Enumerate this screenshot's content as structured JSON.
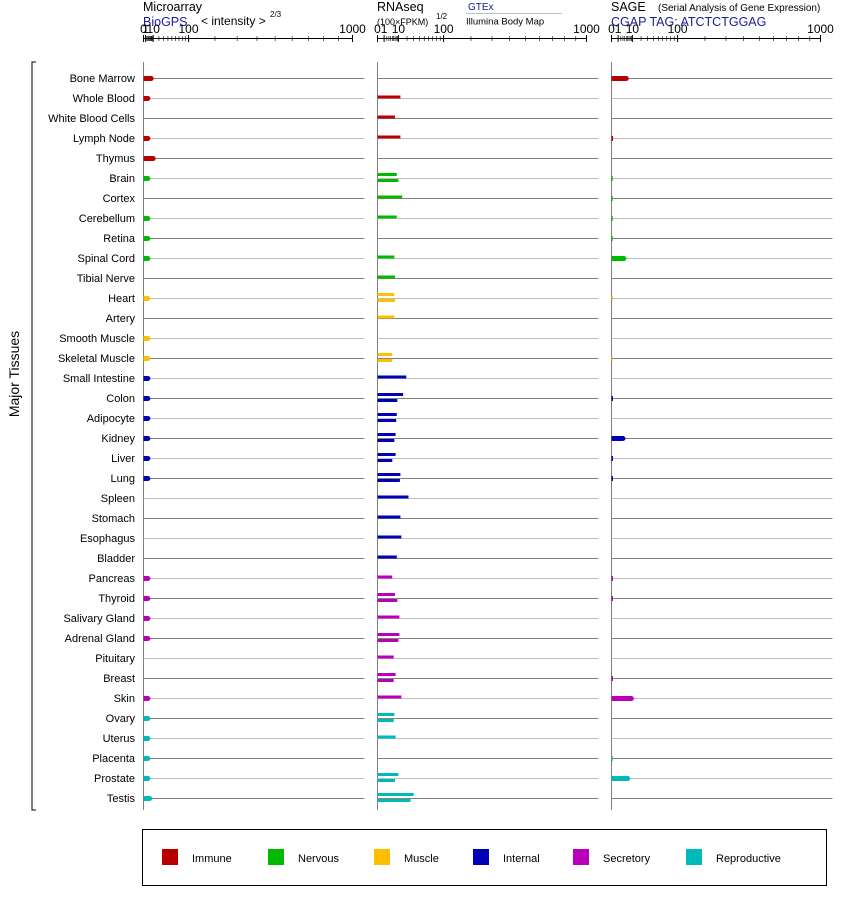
{
  "headers": {
    "microarray": {
      "title": "Microarray",
      "source": "BioGPS",
      "unit": "< intensity >",
      "exponent": "2/3"
    },
    "rnaseq": {
      "title": "RNAseq",
      "unit": "(100×FPKM)",
      "exponent": "1/2",
      "source_a": "GTEx",
      "source_b": "Illumina Body Map"
    },
    "sage": {
      "title": "SAGE",
      "subtitle": "(Serial Analysis of Gene Expression)",
      "tag": "CGAP TAG: ATCTCTGGAG"
    }
  },
  "y_axis_label": "Major Tissues",
  "colors": {
    "Immune": "#b90000",
    "Nervous": "#00b900",
    "Muscle": "#ffbf00",
    "Internal": "#0000b9",
    "Secretory": "#b900b9",
    "Reproductive": "#00b9b9"
  },
  "chart_data": {
    "type": "bar",
    "x_scale": "power",
    "xlim": [
      0,
      1000
    ],
    "x_ticks": [
      "0",
      "1",
      "10",
      "100",
      "1000"
    ],
    "legend": [
      "Immune",
      "Nervous",
      "Muscle",
      "Internal",
      "Secretory",
      "Reproductive"
    ],
    "legend_placement": "bottom",
    "tissues": [
      {
        "name": "Bone Marrow",
        "group": "Immune",
        "microarray": 7,
        "rnaseq": [],
        "sage": 5
      },
      {
        "name": "Whole Blood",
        "group": "Immune",
        "microarray": 3,
        "rnaseq": [
          12
        ],
        "sage": 0
      },
      {
        "name": "White Blood Cells",
        "group": "Immune",
        "microarray": 0,
        "rnaseq": [
          7
        ],
        "sage": 0
      },
      {
        "name": "Lymph Node",
        "group": "Immune",
        "microarray": 3,
        "rnaseq": [
          12
        ],
        "sage": 0.05
      },
      {
        "name": "Thymus",
        "group": "Immune",
        "microarray": 10,
        "rnaseq": [],
        "sage": 0
      },
      {
        "name": "Brain",
        "group": "Nervous",
        "microarray": 3,
        "rnaseq": [
          8.5,
          10
        ],
        "sage": 0.02
      },
      {
        "name": "Cortex",
        "group": "Nervous",
        "microarray": 0,
        "rnaseq": [
          14
        ],
        "sage": 0.02
      },
      {
        "name": "Cerebellum",
        "group": "Nervous",
        "microarray": 3,
        "rnaseq": [
          8.5
        ],
        "sage": 0.02
      },
      {
        "name": "Retina",
        "group": "Nervous",
        "microarray": 3,
        "rnaseq": [],
        "sage": 0.02
      },
      {
        "name": "Spinal Cord",
        "group": "Nervous",
        "microarray": 3,
        "rnaseq": [
          6.5
        ],
        "sage": 3.5
      },
      {
        "name": "Tibial Nerve",
        "group": "Nervous",
        "microarray": 0,
        "rnaseq": [
          7
        ],
        "sage": 0
      },
      {
        "name": "Heart",
        "group": "Muscle",
        "microarray": 2.8,
        "rnaseq": [
          6.5,
          7
        ],
        "sage": 0.01
      },
      {
        "name": "Artery",
        "group": "Muscle",
        "microarray": 0,
        "rnaseq": [
          6.5
        ],
        "sage": 0
      },
      {
        "name": "Smooth Muscle",
        "group": "Muscle",
        "microarray": 3,
        "rnaseq": [],
        "sage": 0
      },
      {
        "name": "Skeletal Muscle",
        "group": "Muscle",
        "microarray": 3,
        "rnaseq": [
          5,
          5
        ],
        "sage": 0.01
      },
      {
        "name": "Small Intestine",
        "group": "Internal",
        "microarray": 3,
        "rnaseq": [
          19
        ],
        "sage": 0
      },
      {
        "name": "Colon",
        "group": "Internal",
        "microarray": 3,
        "rnaseq": [
          15,
          9
        ],
        "sage": 0.05
      },
      {
        "name": "Adipocyte",
        "group": "Internal",
        "microarray": 3,
        "rnaseq": [
          8.5,
          8
        ],
        "sage": 0
      },
      {
        "name": "Kidney",
        "group": "Internal",
        "microarray": 3,
        "rnaseq": [
          7.5,
          6.5
        ],
        "sage": 3
      },
      {
        "name": "Liver",
        "group": "Internal",
        "microarray": 3,
        "rnaseq": [
          7.5,
          5
        ],
        "sage": 0.05
      },
      {
        "name": "Lung",
        "group": "Internal",
        "microarray": 3,
        "rnaseq": [
          12,
          11.5
        ],
        "sage": 0.05
      },
      {
        "name": "Spleen",
        "group": "Internal",
        "microarray": 0,
        "rnaseq": [
          22
        ],
        "sage": 0
      },
      {
        "name": "Stomach",
        "group": "Internal",
        "microarray": 0,
        "rnaseq": [
          12
        ],
        "sage": 0
      },
      {
        "name": "Esophagus",
        "group": "Internal",
        "microarray": 0,
        "rnaseq": [
          13
        ],
        "sage": 0
      },
      {
        "name": "Bladder",
        "group": "Internal",
        "microarray": 0,
        "rnaseq": [
          8.5
        ],
        "sage": 0
      },
      {
        "name": "Pancreas",
        "group": "Secretory",
        "microarray": 3,
        "rnaseq": [
          5
        ],
        "sage": 0.05
      },
      {
        "name": "Thyroid",
        "group": "Secretory",
        "microarray": 3,
        "rnaseq": [
          7,
          9
        ],
        "sage": 0.05
      },
      {
        "name": "Salivary Gland",
        "group": "Secretory",
        "microarray": 3,
        "rnaseq": [
          11
        ],
        "sage": 0
      },
      {
        "name": "Adrenal Gland",
        "group": "Secretory",
        "microarray": 3,
        "rnaseq": [
          11,
          10
        ],
        "sage": 0
      },
      {
        "name": "Pituitary",
        "group": "Secretory",
        "microarray": 0,
        "rnaseq": [
          6
        ],
        "sage": 0
      },
      {
        "name": "Breast",
        "group": "Secretory",
        "microarray": 0,
        "rnaseq": [
          7.5,
          6
        ],
        "sage": 0.05
      },
      {
        "name": "Skin",
        "group": "Secretory",
        "microarray": 3,
        "rnaseq": [
          13
        ],
        "sage": 9
      },
      {
        "name": "Ovary",
        "group": "Reproductive",
        "microarray": 3,
        "rnaseq": [
          6.5,
          6
        ],
        "sage": 0
      },
      {
        "name": "Uterus",
        "group": "Reproductive",
        "microarray": 3,
        "rnaseq": [
          7.5
        ],
        "sage": 0
      },
      {
        "name": "Placenta",
        "group": "Reproductive",
        "microarray": 3,
        "rnaseq": [],
        "sage": 0.02
      },
      {
        "name": "Prostate",
        "group": "Reproductive",
        "microarray": 3,
        "rnaseq": [
          10,
          7
        ],
        "sage": 6
      },
      {
        "name": "Testis",
        "group": "Reproductive",
        "microarray": 5,
        "rnaseq": [
          30,
          25
        ],
        "sage": 0
      }
    ]
  }
}
